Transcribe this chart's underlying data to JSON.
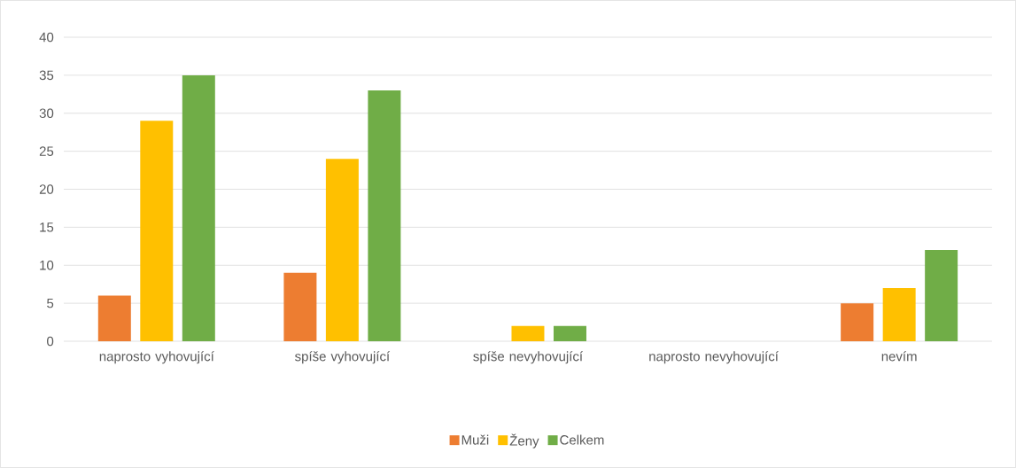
{
  "chart_data": {
    "type": "bar",
    "categories": [
      "naprosto vyhovující",
      "spíše vyhovující",
      "spíše nevyhovující",
      "naprosto nevyhovující",
      "nevím"
    ],
    "series": [
      {
        "name": "Muži",
        "color": "#ed7d31",
        "values": [
          6,
          9,
          0,
          0,
          5
        ]
      },
      {
        "name": "Ženy",
        "color": "#ffc000",
        "values": [
          29,
          24,
          2,
          0,
          7
        ]
      },
      {
        "name": "Celkem",
        "color": "#70ad47",
        "values": [
          35,
          33,
          2,
          0,
          12
        ]
      }
    ],
    "ylim": [
      0,
      40
    ],
    "yticks": [
      0,
      5,
      10,
      15,
      20,
      25,
      30,
      35,
      40
    ],
    "grid": "y",
    "legend": "bottom"
  }
}
